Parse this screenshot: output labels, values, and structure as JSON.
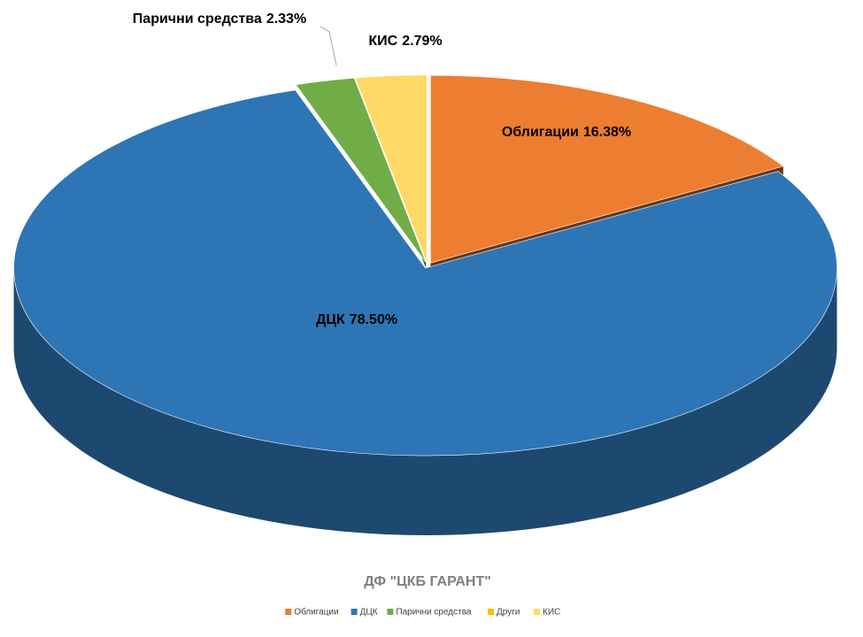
{
  "chart_data": {
    "type": "pie3d",
    "title": "ДФ \"ЦКБ ГАРАНТ\"",
    "categories": [
      "Облигации",
      "ДЦК",
      "Парични средства",
      "Други",
      "КИС"
    ],
    "values": [
      16.38,
      78.5,
      2.33,
      0,
      2.79
    ],
    "value_labels": [
      "16.38%",
      "78.50%",
      "2.33%",
      null,
      "2.79%"
    ],
    "colors": [
      "#ed7d31",
      "#2e75b6",
      "#70ad47",
      "#ffc000",
      "#ffd966"
    ],
    "legend": "bottom"
  }
}
